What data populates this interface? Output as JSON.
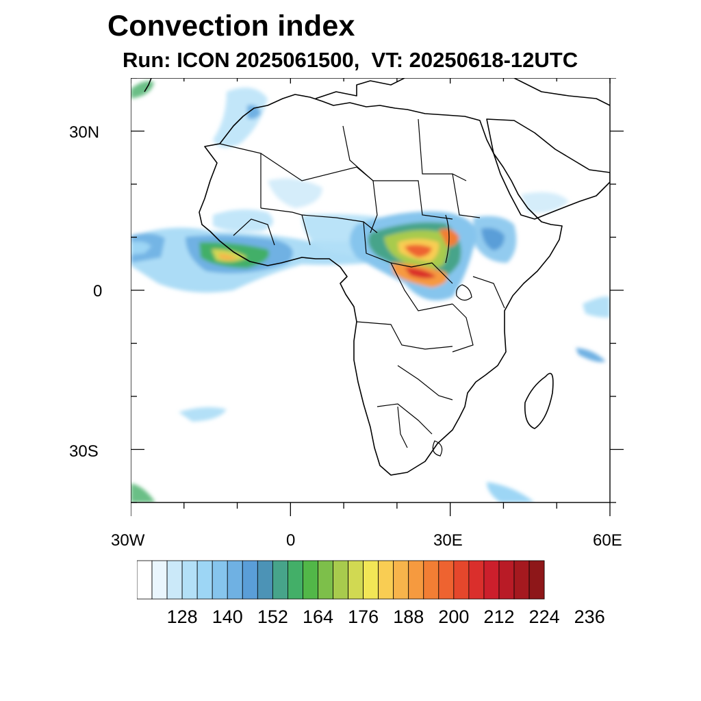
{
  "title": "Convection index",
  "subtitle": "Run: ICON 2025061500,  VT: 20250618-12UTC",
  "map": {
    "projection": "cylindrical equidistant",
    "lon_range": [
      -30,
      60
    ],
    "lat_range": [
      -40,
      40
    ],
    "x_ticks": [
      {
        "lon": -30,
        "label": "30W"
      },
      {
        "lon": 0,
        "label": "0"
      },
      {
        "lon": 30,
        "label": "30E"
      },
      {
        "lon": 60,
        "label": "60E"
      }
    ],
    "y_ticks": [
      {
        "lat": 30,
        "label": "30N"
      },
      {
        "lat": 0,
        "label": "0"
      },
      {
        "lat": -30,
        "label": "30S"
      }
    ],
    "minor_lon_step": 10,
    "minor_lat_step": 10,
    "features": [
      "africa-coastline",
      "country-borders",
      "arabian-peninsula",
      "madagascar",
      "west-africa-convection",
      "central-africa-convection",
      "east-africa-convection",
      "south-atlantic-cloud-band",
      "south-indian-ocean-band"
    ]
  },
  "colorbar": {
    "colors": [
      "#ffffff",
      "#eaf6fd",
      "#cbe9f9",
      "#b3e0f7",
      "#9dd6f5",
      "#86c5ed",
      "#6fb1e3",
      "#5a9ed8",
      "#4c93b6",
      "#47a48a",
      "#43af68",
      "#52b748",
      "#7dbf4a",
      "#a8cb4d",
      "#d1d952",
      "#f2e656",
      "#f9cd53",
      "#f7b44b",
      "#f69a3f",
      "#f27e34",
      "#ee6330",
      "#e5472c",
      "#da2f2c",
      "#cc1f2c",
      "#b91b26",
      "#a5191f",
      "#8e1719"
    ],
    "labels": [
      "128",
      "140",
      "152",
      "164",
      "176",
      "188",
      "200",
      "212",
      "224",
      "236"
    ]
  }
}
